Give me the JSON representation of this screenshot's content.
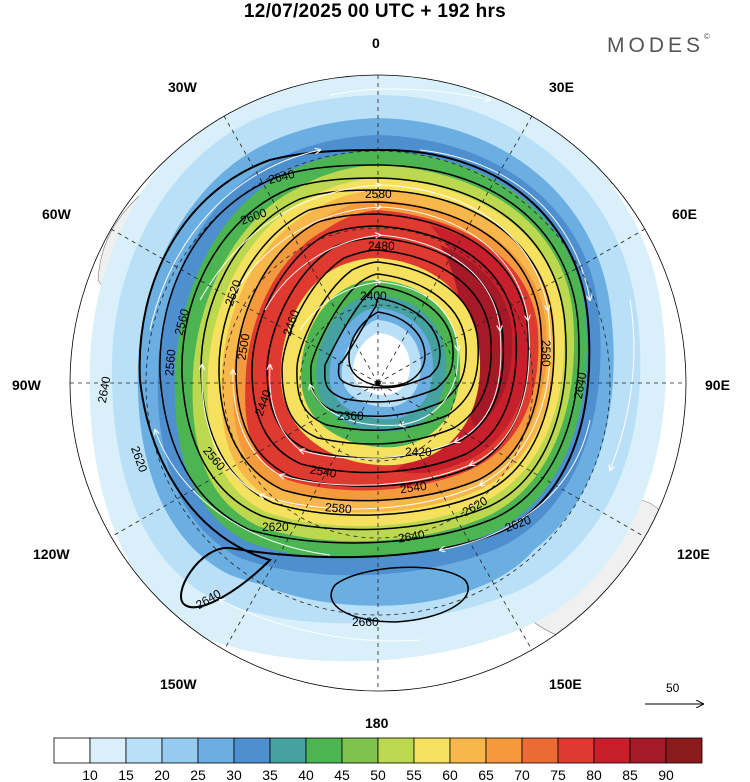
{
  "title": "12/07/2025  00 UTC  + 192 hrs",
  "brand": "MODES",
  "brand_mark": "©",
  "longitude_labels": {
    "top": "0",
    "bottom": "180",
    "left": "90W",
    "right": "90E",
    "upper_left_outer": "30W",
    "upper_right_outer": "30E",
    "upper_left_inner": "60W",
    "upper_right_inner": "60E",
    "lower_left_inner": "120W",
    "lower_right_inner": "120E",
    "lower_left_outer": "150W",
    "lower_right_outer": "150E"
  },
  "contour_labels": [
    "2640",
    "2580",
    "2600",
    "2480",
    "2400",
    "2560",
    "2520",
    "2500",
    "2460",
    "2360",
    "2440",
    "2420",
    "2560",
    "2540",
    "2560",
    "2620",
    "2580",
    "2640",
    "2540",
    "2580",
    "2620",
    "2640",
    "2660",
    "2640",
    "2620",
    "2640",
    "2620"
  ],
  "colorbar": {
    "ticks": [
      "10",
      "15",
      "20",
      "25",
      "30",
      "35",
      "40",
      "45",
      "50",
      "55",
      "60",
      "65",
      "70",
      "75",
      "80",
      "85",
      "90"
    ],
    "colors": [
      "#ffffff",
      "#d9f0fb",
      "#b9e0f6",
      "#94cbef",
      "#6aaee2",
      "#4d8fcf",
      "#46a2a0",
      "#4cb552",
      "#7dc34d",
      "#bcd84f",
      "#f6e15e",
      "#f7b74b",
      "#f59a3c",
      "#ec6a34",
      "#de3a2f",
      "#c71f2b",
      "#a51a26",
      "#8b1a1c"
    ]
  },
  "vector_reference": "50",
  "colors": {
    "land": "#f0f0f0",
    "background": "#ffffff",
    "contour": "#000000",
    "streamline": "#ffffff"
  }
}
